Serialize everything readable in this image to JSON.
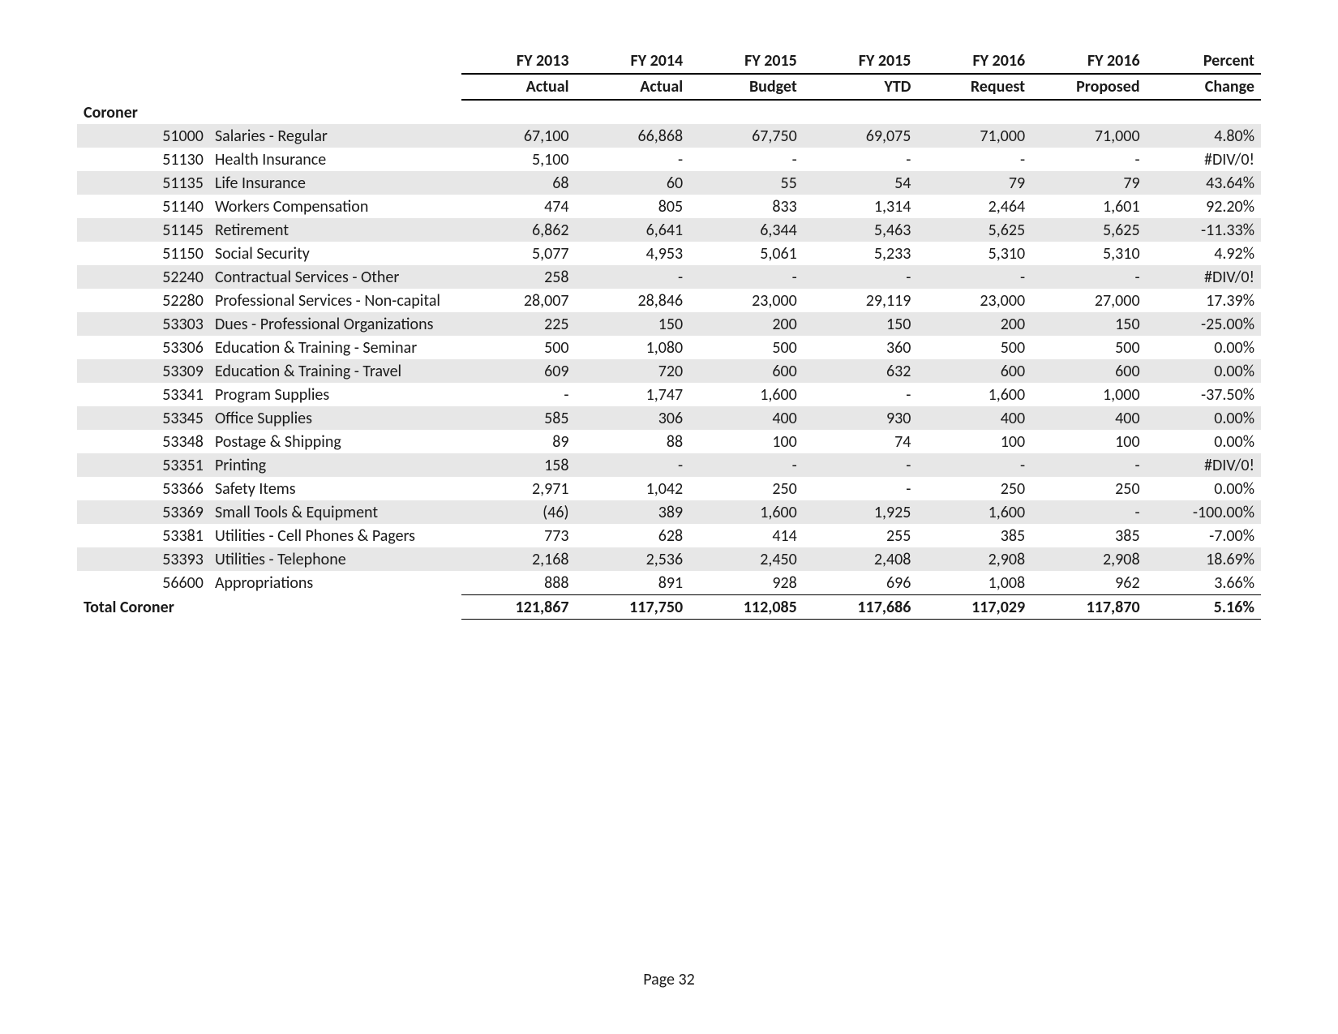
{
  "page_label": "Page 32",
  "columns": [
    {
      "l1": "FY 2013",
      "l2": "Actual"
    },
    {
      "l1": "FY 2014",
      "l2": "Actual"
    },
    {
      "l1": "FY 2015",
      "l2": "Budget"
    },
    {
      "l1": "FY 2015",
      "l2": "YTD"
    },
    {
      "l1": "FY 2016",
      "l2": "Request"
    },
    {
      "l1": "FY 2016",
      "l2": "Proposed"
    },
    {
      "l1": "Percent",
      "l2": "Change"
    }
  ],
  "section_title": "Coroner",
  "total_label": "Total Coroner",
  "rows": [
    {
      "code": "51000",
      "desc": "Salaries - Regular",
      "v": [
        "67,100",
        "66,868",
        "67,750",
        "69,075",
        "71,000",
        "71,000",
        "4.80%"
      ],
      "shade": true
    },
    {
      "code": "51130",
      "desc": "Health Insurance",
      "v": [
        "5,100",
        "-",
        "-",
        "-",
        "-",
        "-",
        "#DIV/0!"
      ],
      "shade": false
    },
    {
      "code": "51135",
      "desc": "Life Insurance",
      "v": [
        "68",
        "60",
        "55",
        "54",
        "79",
        "79",
        "43.64%"
      ],
      "shade": true
    },
    {
      "code": "51140",
      "desc": "Workers Compensation",
      "v": [
        "474",
        "805",
        "833",
        "1,314",
        "2,464",
        "1,601",
        "92.20%"
      ],
      "shade": false
    },
    {
      "code": "51145",
      "desc": "Retirement",
      "v": [
        "6,862",
        "6,641",
        "6,344",
        "5,463",
        "5,625",
        "5,625",
        "-11.33%"
      ],
      "shade": true
    },
    {
      "code": "51150",
      "desc": "Social Security",
      "v": [
        "5,077",
        "4,953",
        "5,061",
        "5,233",
        "5,310",
        "5,310",
        "4.92%"
      ],
      "shade": false
    },
    {
      "code": "52240",
      "desc": "Contractual Services - Other",
      "v": [
        "258",
        "-",
        "-",
        "-",
        "-",
        "-",
        "#DIV/0!"
      ],
      "shade": true
    },
    {
      "code": "52280",
      "desc": "Professional Services - Non-capital",
      "v": [
        "28,007",
        "28,846",
        "23,000",
        "29,119",
        "23,000",
        "27,000",
        "17.39%"
      ],
      "shade": false
    },
    {
      "code": "53303",
      "desc": "Dues - Professional Organizations",
      "v": [
        "225",
        "150",
        "200",
        "150",
        "200",
        "150",
        "-25.00%"
      ],
      "shade": true
    },
    {
      "code": "53306",
      "desc": "Education & Training - Seminar",
      "v": [
        "500",
        "1,080",
        "500",
        "360",
        "500",
        "500",
        "0.00%"
      ],
      "shade": false
    },
    {
      "code": "53309",
      "desc": "Education & Training - Travel",
      "v": [
        "609",
        "720",
        "600",
        "632",
        "600",
        "600",
        "0.00%"
      ],
      "shade": true
    },
    {
      "code": "53341",
      "desc": "Program Supplies",
      "v": [
        "-",
        "1,747",
        "1,600",
        "-",
        "1,600",
        "1,000",
        "-37.50%"
      ],
      "shade": false
    },
    {
      "code": "53345",
      "desc": "Office Supplies",
      "v": [
        "585",
        "306",
        "400",
        "930",
        "400",
        "400",
        "0.00%"
      ],
      "shade": true
    },
    {
      "code": "53348",
      "desc": "Postage & Shipping",
      "v": [
        "89",
        "88",
        "100",
        "74",
        "100",
        "100",
        "0.00%"
      ],
      "shade": false
    },
    {
      "code": "53351",
      "desc": "Printing",
      "v": [
        "158",
        "-",
        "-",
        "-",
        "-",
        "-",
        "#DIV/0!"
      ],
      "shade": true
    },
    {
      "code": "53366",
      "desc": "Safety Items",
      "v": [
        "2,971",
        "1,042",
        "250",
        "-",
        "250",
        "250",
        "0.00%"
      ],
      "shade": false
    },
    {
      "code": "53369",
      "desc": "Small Tools & Equipment",
      "v": [
        "(46)",
        "389",
        "1,600",
        "1,925",
        "1,600",
        "-",
        "-100.00%"
      ],
      "shade": true
    },
    {
      "code": "53381",
      "desc": "Utilities - Cell Phones & Pagers",
      "v": [
        "773",
        "628",
        "414",
        "255",
        "385",
        "385",
        "-7.00%"
      ],
      "shade": false
    },
    {
      "code": "53393",
      "desc": "Utilities - Telephone",
      "v": [
        "2,168",
        "2,536",
        "2,450",
        "2,408",
        "2,908",
        "2,908",
        "18.69%"
      ],
      "shade": true
    },
    {
      "code": "56600",
      "desc": "Appropriations",
      "v": [
        "888",
        "891",
        "928",
        "696",
        "1,008",
        "962",
        "3.66%"
      ],
      "shade": false
    }
  ],
  "totals": [
    "121,867",
    "117,750",
    "112,085",
    "117,686",
    "117,029",
    "117,870",
    "5.16%"
  ]
}
